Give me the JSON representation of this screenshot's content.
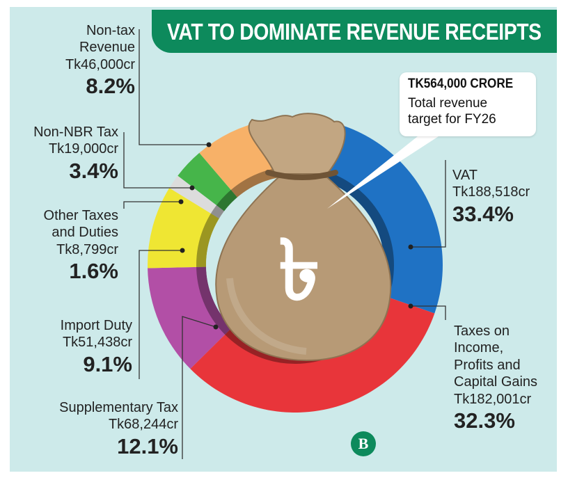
{
  "title": "VAT TO DOMINATE REVENUE RECEIPTS",
  "callout": {
    "heading": "TK564,000 CRORE",
    "line1": "Total revenue",
    "line2": "target for FY26"
  },
  "currency_symbol": "৳",
  "logo_text": "B",
  "colors": {
    "vat": "#1f72c4",
    "income_tax": "#e8353a",
    "supplementary": "#b24fa6",
    "import_duty": "#efe633",
    "other_taxes": "#dcdcdc",
    "non_nbr": "#46b54a",
    "non_tax": "#f7b168",
    "brand_green": "#0d8a5c",
    "panel": "#cdeaea"
  },
  "chart_data": {
    "type": "pie",
    "variant": "donut",
    "title": "VAT TO DOMINATE REVENUE RECEIPTS",
    "total_label": "TK564,000 CRORE",
    "slices": [
      {
        "key": "vat",
        "name": "VAT",
        "amount": "Tk188,518cr",
        "percent": 33.4,
        "percent_label": "33.4%"
      },
      {
        "key": "income_tax",
        "name": "Taxes on Income, Profits and Capital Gains",
        "name_lines": [
          "Taxes on",
          "Income,",
          "Profits and",
          "Capital Gains"
        ],
        "amount": "Tk182,001cr",
        "percent": 32.3,
        "percent_label": "32.3%"
      },
      {
        "key": "supplementary",
        "name": "Supplementary Tax",
        "name_lines": [
          "Supplementary Tax"
        ],
        "amount": "Tk68,244cr",
        "percent": 12.1,
        "percent_label": "12.1%"
      },
      {
        "key": "import_duty",
        "name": "Import Duty",
        "name_lines": [
          "Import Duty"
        ],
        "amount": "Tk51,438cr",
        "percent": 9.1,
        "percent_label": "9.1%"
      },
      {
        "key": "other_taxes",
        "name": "Other Taxes and Duties",
        "name_lines": [
          "Other Taxes",
          "and Duties"
        ],
        "amount": "Tk8,799cr",
        "percent": 1.6,
        "percent_label": "1.6%"
      },
      {
        "key": "non_nbr",
        "name": "Non-NBR Tax",
        "name_lines": [
          "Non-NBR Tax"
        ],
        "amount": "Tk19,000cr",
        "percent": 3.4,
        "percent_label": "3.4%"
      },
      {
        "key": "non_tax",
        "name": "Non-tax Revenue",
        "name_lines": [
          "Non-tax",
          "Revenue"
        ],
        "amount": "Tk46,000cr",
        "percent": 8.2,
        "percent_label": "8.2%"
      }
    ],
    "legend": "none",
    "grid": false
  }
}
